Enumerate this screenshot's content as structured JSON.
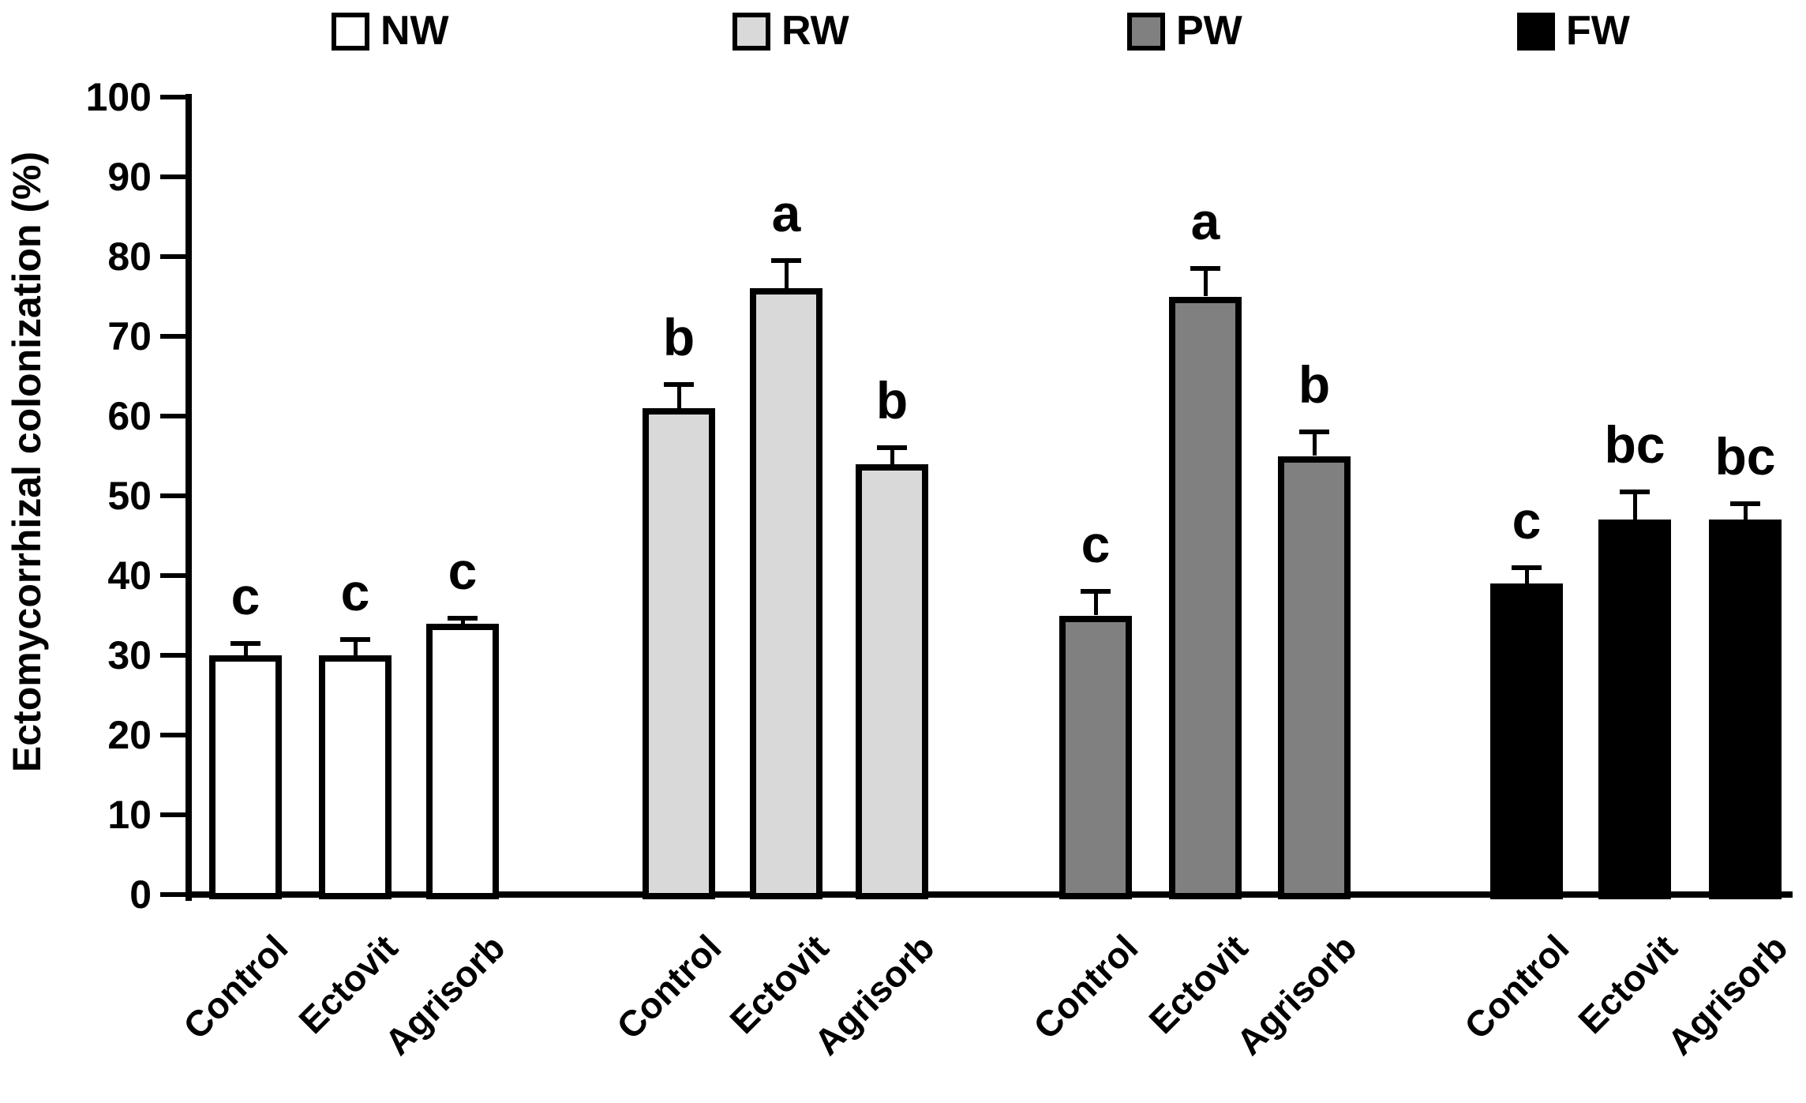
{
  "figure": {
    "ylabel": "Ectomycorrhizal colonization (%)"
  },
  "legend": [
    {
      "label": "NW",
      "color": "#ffffff"
    },
    {
      "label": "RW",
      "color": "#d9d9d9"
    },
    {
      "label": "PW",
      "color": "#808080"
    },
    {
      "label": "FW",
      "color": "#000000"
    }
  ],
  "chart_data": {
    "type": "bar",
    "title": "",
    "xlabel": "",
    "ylabel": "Ectomycorrhizal colonization (%)",
    "ylim": [
      0,
      100
    ],
    "yticks": [
      0,
      10,
      20,
      30,
      40,
      50,
      60,
      70,
      80,
      90,
      100
    ],
    "grid": false,
    "legend_position": "top",
    "categories": [
      "Control",
      "Ectovit",
      "Agrisorb"
    ],
    "series": [
      {
        "name": "NW",
        "color": "#ffffff",
        "values": [
          30,
          30,
          34
        ],
        "errors": [
          1.5,
          2,
          0.7
        ],
        "letters": [
          "c",
          "c",
          "c"
        ]
      },
      {
        "name": "RW",
        "color": "#d9d9d9",
        "values": [
          61,
          76,
          54
        ],
        "errors": [
          3,
          3.5,
          2
        ],
        "letters": [
          "b",
          "a",
          "b"
        ]
      },
      {
        "name": "PW",
        "color": "#808080",
        "values": [
          35,
          75,
          55
        ],
        "errors": [
          3,
          3.5,
          3
        ],
        "letters": [
          "c",
          "a",
          "b"
        ]
      },
      {
        "name": "FW",
        "color": "#000000",
        "values": [
          39,
          47,
          47
        ],
        "errors": [
          2,
          3.5,
          2
        ],
        "letters": [
          "c",
          "bc",
          "bc"
        ]
      }
    ]
  }
}
